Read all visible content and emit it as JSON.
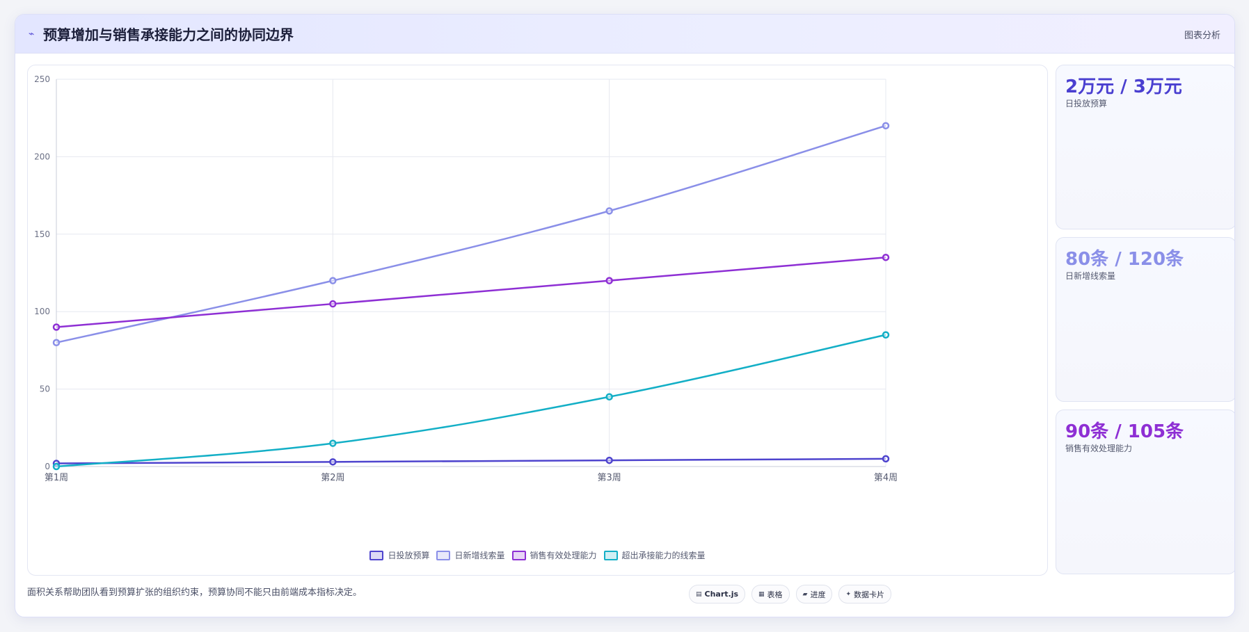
{
  "header": {
    "icon": "chart-line-icon",
    "title": "预算增加与销售承接能力之间的协同边界",
    "action_label": "图表分析"
  },
  "chart_data": {
    "type": "line",
    "title": "",
    "xlabel": "",
    "ylabel": "",
    "categories": [
      "第1周",
      "第2周",
      "第3周",
      "第4周"
    ],
    "ylim": [
      0,
      250
    ],
    "yticks": [
      0,
      50,
      100,
      150,
      200,
      250
    ],
    "grid": true,
    "legend_position": "bottom",
    "series": [
      {
        "name": "日投放预算",
        "color": "#4e44ce",
        "values": [
          2,
          3,
          4,
          5
        ]
      },
      {
        "name": "日新增线索量",
        "color": "#8a8fe8",
        "values": [
          80,
          120,
          165,
          220
        ]
      },
      {
        "name": "销售有效处理能力",
        "color": "#8e2fd4",
        "values": [
          90,
          105,
          120,
          135
        ]
      },
      {
        "name": "超出承接能力的线索量",
        "color": "#13afc6",
        "values": [
          0,
          15,
          45,
          85
        ]
      }
    ]
  },
  "stats": [
    {
      "value": "2万元 / 3万元",
      "label": "日投放预算",
      "color": "#4a3fd0"
    },
    {
      "value": "80条 / 120条",
      "label": "日新增线索量",
      "color": "#8a8fe8"
    },
    {
      "value": "90条 / 105条",
      "label": "销售有效处理能力",
      "color": "#8e2fd4"
    }
  ],
  "footnote": "面积关系帮助团队看到预算扩张的组织约束，预算协同不能只由前端成本指标决定。",
  "tags": [
    {
      "icon": "table-icon",
      "glyph": "▤",
      "label": "Chart.js"
    },
    {
      "icon": "grid-icon",
      "glyph": "▦",
      "label": "表格"
    },
    {
      "icon": "progress-icon",
      "glyph": "▰",
      "label": "进度"
    },
    {
      "icon": "sparkle-icon",
      "glyph": "✦",
      "label": "数据卡片"
    }
  ]
}
